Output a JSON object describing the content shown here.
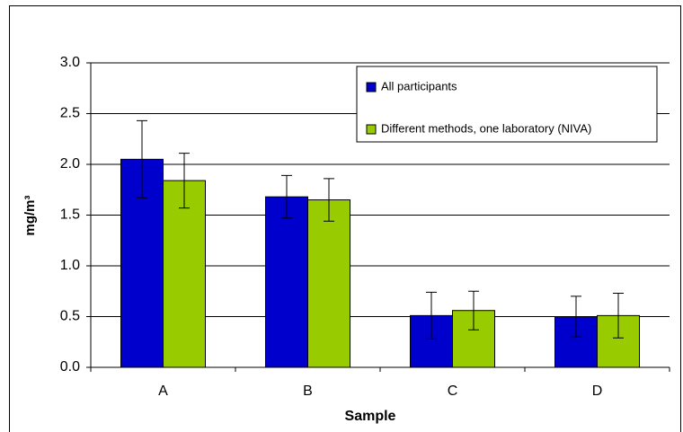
{
  "chart_data": {
    "type": "bar",
    "xlabel": "Sample",
    "ylabel": "mg/m³",
    "categories": [
      "A",
      "B",
      "C",
      "D"
    ],
    "series": [
      {
        "name": "All participants",
        "color": "#0000cc",
        "values": [
          2.05,
          1.68,
          0.51,
          0.5
        ],
        "errors": [
          0.38,
          0.21,
          0.23,
          0.2
        ]
      },
      {
        "name": "Different methods, one laboratory (NIVA)",
        "color": "#99cc00",
        "values": [
          1.84,
          1.65,
          0.56,
          0.51
        ],
        "errors": [
          0.27,
          0.21,
          0.19,
          0.22
        ]
      }
    ],
    "ylim": [
      0,
      3
    ],
    "yticks": [
      {
        "value": 0,
        "label": "0.0"
      },
      {
        "value": 0.5,
        "label": "0.5"
      },
      {
        "value": 1,
        "label": "1.0"
      },
      {
        "value": 1.5,
        "label": "1.5"
      },
      {
        "value": 2,
        "label": "2.0"
      },
      {
        "value": 2.5,
        "label": "2.5"
      },
      {
        "value": 3,
        "label": "3.0"
      }
    ],
    "grid": true,
    "legend": "upper right"
  }
}
